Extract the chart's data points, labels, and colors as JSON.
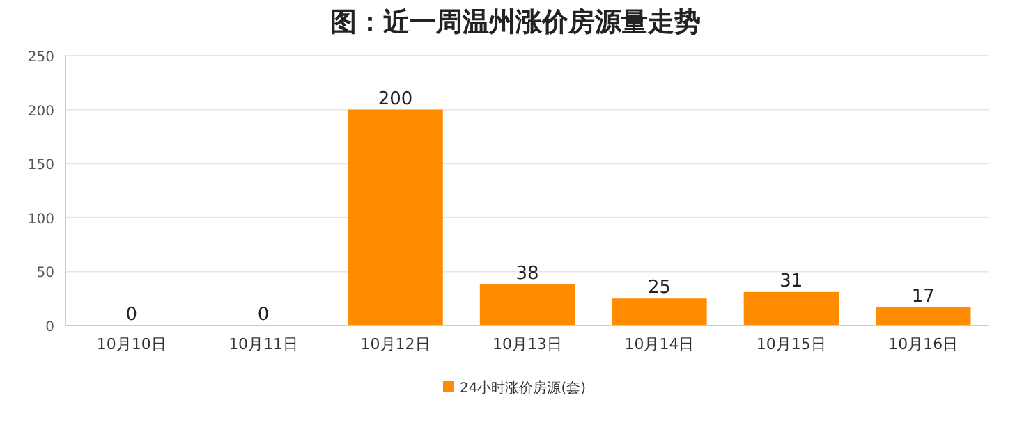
{
  "chart_data": {
    "type": "bar",
    "title": "图：近一周温州涨价房源量走势",
    "categories": [
      "10月10日",
      "10月11日",
      "10月12日",
      "10月13日",
      "10月14日",
      "10月15日",
      "10月16日"
    ],
    "series": [
      {
        "name": "24小时涨价房源(套)",
        "color": "#ff8c00",
        "values": [
          0,
          0,
          200,
          38,
          25,
          31,
          17
        ]
      }
    ],
    "ylim": [
      0,
      250
    ],
    "yticks": [
      0,
      50,
      100,
      150,
      200,
      250
    ],
    "grid": "y",
    "legend": "bottom",
    "data_labels": true
  }
}
